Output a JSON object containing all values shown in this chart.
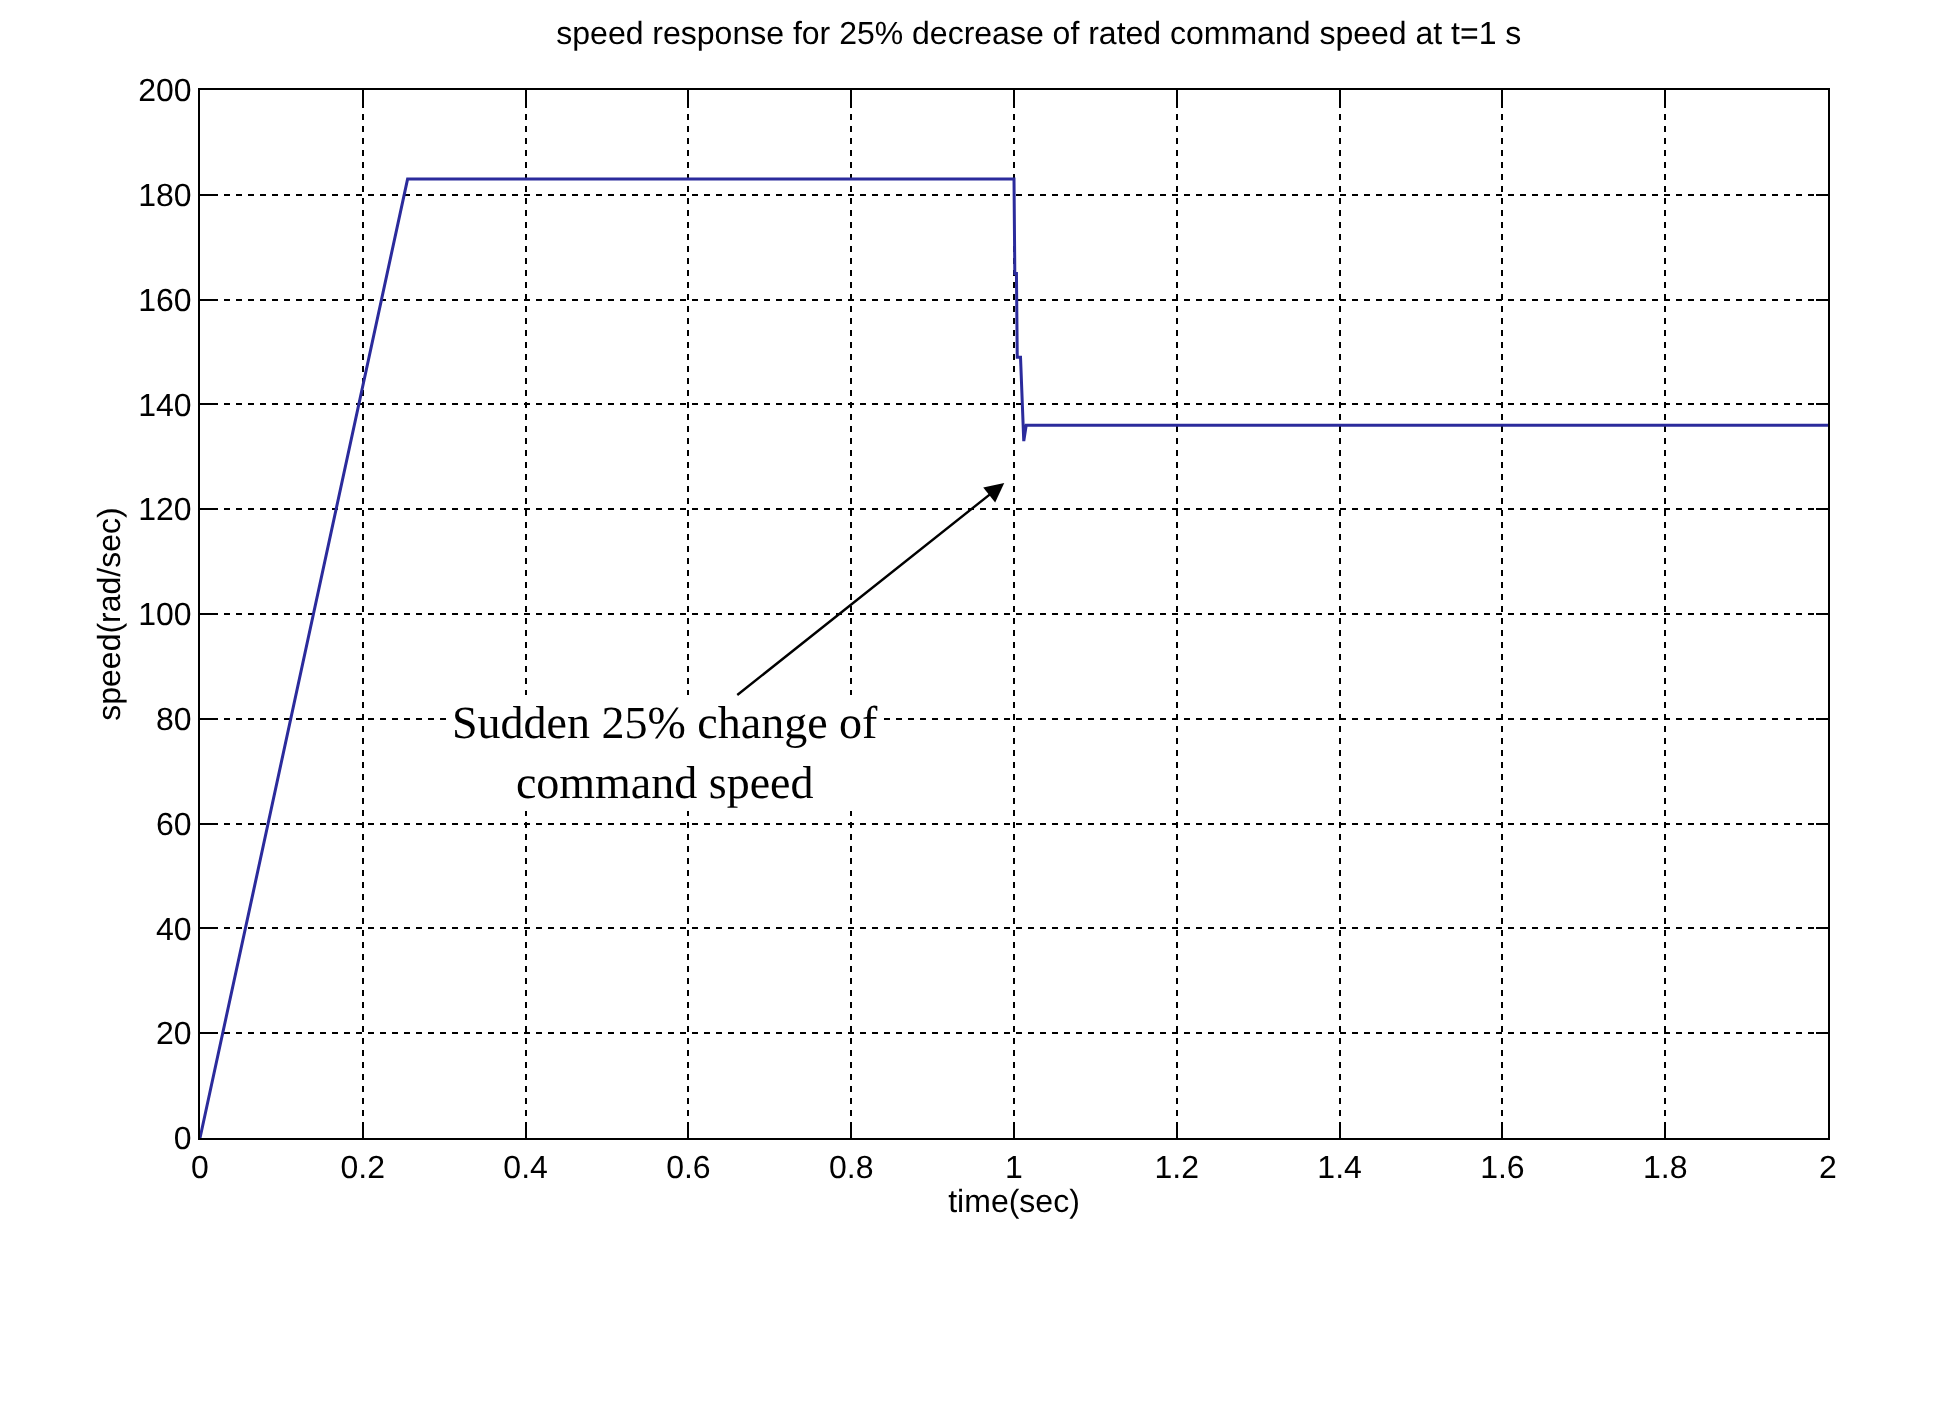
{
  "chart_data": {
    "type": "line",
    "title": "speed response for 25% decrease of rated command speed at t=1 s",
    "xlabel": "time(sec)",
    "ylabel": "speed(rad/sec)",
    "x": [
      0,
      0.255,
      1.0,
      1.001,
      1.003,
      1.004,
      1.008,
      1.012,
      1.015,
      2
    ],
    "series": [
      {
        "color": "#2b2b9c",
        "values": [
          0,
          183,
          183,
          165,
          165,
          149,
          149,
          133,
          136,
          136
        ]
      }
    ],
    "xlim": [
      0,
      2
    ],
    "xticks": [
      0,
      0.2,
      0.4,
      0.6,
      0.8,
      1,
      1.2,
      1.4,
      1.6,
      1.8,
      2
    ],
    "ylim": [
      0,
      200
    ],
    "yticks": [
      0,
      20,
      40,
      60,
      80,
      100,
      120,
      140,
      160,
      180,
      200
    ],
    "grid": true,
    "line_style": "solid",
    "legend": false,
    "annotations": [
      "Sudden 25% change of\ncommand speed"
    ]
  }
}
